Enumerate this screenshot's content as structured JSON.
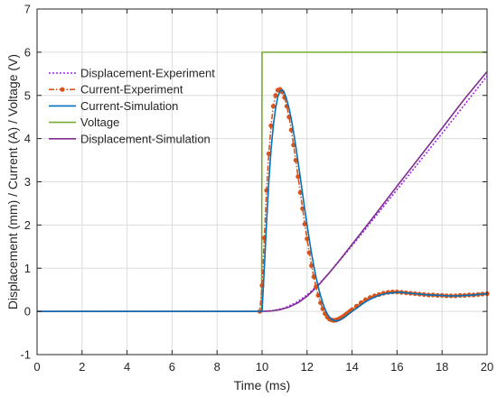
{
  "chart_data": {
    "type": "line",
    "title": "",
    "xlabel": "Time (ms)",
    "ylabel": "Displacement (mm) / Current (A) / Voltage (V)",
    "xlim": [
      0,
      20
    ],
    "ylim": [
      -1,
      7
    ],
    "xticks": [
      0,
      2,
      4,
      6,
      8,
      10,
      12,
      14,
      16,
      18,
      20
    ],
    "yticks": [
      -1,
      0,
      1,
      2,
      3,
      4,
      5,
      6,
      7
    ],
    "grid": true,
    "legend_position": "top-left",
    "series": [
      {
        "name": "Displacement-Experiment",
        "color": "#A020F0",
        "style": "dotted",
        "marker": "none",
        "x": [
          0,
          10,
          10.5,
          11,
          11.5,
          12,
          12.5,
          13,
          14,
          16,
          18,
          20
        ],
        "y": [
          0,
          0,
          0.02,
          0.08,
          0.2,
          0.38,
          0.62,
          0.9,
          1.52,
          2.82,
          4.12,
          5.45
        ]
      },
      {
        "name": "Current-Experiment",
        "color": "#D95319",
        "style": "dashdot",
        "marker": "circle",
        "x": [
          0,
          1,
          2,
          3,
          4,
          5,
          6,
          7,
          8,
          9,
          9.9,
          10.0,
          10.1,
          10.2,
          10.3,
          10.4,
          10.5,
          10.6,
          10.7,
          10.8,
          10.9,
          11.0,
          11.1,
          11.2,
          11.3,
          11.4,
          11.5,
          11.6,
          11.7,
          11.8,
          11.9,
          12.0,
          12.1,
          12.2,
          12.3,
          12.4,
          12.5,
          12.6,
          12.7,
          12.8,
          12.9,
          13.0,
          13.1,
          13.2,
          13.3,
          13.4,
          13.5,
          13.6,
          13.7,
          13.8,
          13.9,
          14.0,
          14.2,
          14.4,
          14.6,
          14.8,
          15.0,
          15.2,
          15.4,
          15.6,
          15.8,
          16.0,
          16.2,
          16.4,
          16.6,
          16.8,
          17.0,
          17.2,
          17.4,
          17.6,
          17.8,
          18.0,
          18.2,
          18.4,
          18.6,
          18.8,
          19.0,
          19.2,
          19.4,
          19.6,
          19.8,
          20.0
        ],
        "y": [
          0,
          0,
          0,
          0,
          0,
          0,
          0,
          0,
          0,
          0,
          0,
          0.6,
          1.7,
          2.8,
          3.65,
          4.3,
          4.75,
          5.0,
          5.12,
          5.14,
          5.08,
          4.95,
          4.75,
          4.5,
          4.2,
          3.85,
          3.5,
          3.12,
          2.75,
          2.38,
          2.02,
          1.68,
          1.36,
          1.06,
          0.8,
          0.57,
          0.37,
          0.2,
          0.06,
          -0.05,
          -0.13,
          -0.18,
          -0.2,
          -0.21,
          -0.2,
          -0.18,
          -0.15,
          -0.12,
          -0.08,
          -0.04,
          0.0,
          0.04,
          0.12,
          0.2,
          0.27,
          0.32,
          0.36,
          0.39,
          0.42,
          0.44,
          0.45,
          0.45,
          0.44,
          0.43,
          0.42,
          0.41,
          0.4,
          0.39,
          0.38,
          0.38,
          0.37,
          0.37,
          0.36,
          0.36,
          0.36,
          0.37,
          0.37,
          0.38,
          0.38,
          0.39,
          0.4,
          0.41
        ]
      },
      {
        "name": "Current-Simulation",
        "color": "#0072BD",
        "style": "solid",
        "marker": "none",
        "x": [
          0,
          1,
          2,
          3,
          4,
          5,
          6,
          7,
          8,
          9,
          10.0,
          10.1,
          10.2,
          10.3,
          10.4,
          10.5,
          10.6,
          10.7,
          10.8,
          10.9,
          11.0,
          11.1,
          11.2,
          11.3,
          11.4,
          11.5,
          11.6,
          11.7,
          11.8,
          11.9,
          12.0,
          12.1,
          12.2,
          12.3,
          12.4,
          12.5,
          12.6,
          12.7,
          12.8,
          12.9,
          13.0,
          13.1,
          13.2,
          13.3,
          13.4,
          13.5,
          13.6,
          13.7,
          13.8,
          13.9,
          14.0,
          14.2,
          14.4,
          14.6,
          14.8,
          15.0,
          15.2,
          15.4,
          15.6,
          15.8,
          16.0,
          16.2,
          16.4,
          16.6,
          16.8,
          17.0,
          17.2,
          17.4,
          17.6,
          17.8,
          18.0,
          18.2,
          18.4,
          18.6,
          18.8,
          19.0,
          19.2,
          19.4,
          19.6,
          19.8,
          20.0
        ],
        "y": [
          0,
          0,
          0,
          0,
          0,
          0,
          0,
          0,
          0,
          0,
          0,
          1.0,
          2.05,
          3.0,
          3.75,
          4.3,
          4.7,
          4.97,
          5.1,
          5.13,
          5.05,
          4.9,
          4.7,
          4.45,
          4.15,
          3.82,
          3.46,
          3.1,
          2.72,
          2.35,
          2.0,
          1.66,
          1.34,
          1.05,
          0.79,
          0.56,
          0.36,
          0.19,
          0.05,
          -0.06,
          -0.14,
          -0.19,
          -0.21,
          -0.22,
          -0.21,
          -0.19,
          -0.16,
          -0.12,
          -0.08,
          -0.04,
          0.0,
          0.07,
          0.15,
          0.22,
          0.28,
          0.33,
          0.37,
          0.4,
          0.42,
          0.43,
          0.44,
          0.44,
          0.43,
          0.42,
          0.41,
          0.4,
          0.39,
          0.38,
          0.38,
          0.37,
          0.37,
          0.36,
          0.36,
          0.36,
          0.36,
          0.37,
          0.37,
          0.38,
          0.39,
          0.4,
          0.41
        ]
      },
      {
        "name": "Voltage",
        "color": "#77AC30",
        "style": "solid",
        "marker": "none",
        "x": [
          0,
          9.98,
          10.0,
          20
        ],
        "y": [
          0,
          0,
          6,
          6
        ]
      },
      {
        "name": "Displacement-Simulation",
        "color": "#7E2F8E",
        "style": "solid",
        "marker": "none",
        "x": [
          0,
          10,
          10.4,
          10.8,
          11.2,
          11.6,
          12.0,
          12.5,
          13.0,
          13.5,
          14.0,
          15,
          16,
          17,
          18,
          19,
          20
        ],
        "y": [
          0,
          0,
          0.01,
          0.04,
          0.1,
          0.2,
          0.35,
          0.6,
          0.9,
          1.22,
          1.55,
          2.22,
          2.9,
          3.57,
          4.24,
          4.92,
          5.55
        ]
      }
    ]
  }
}
